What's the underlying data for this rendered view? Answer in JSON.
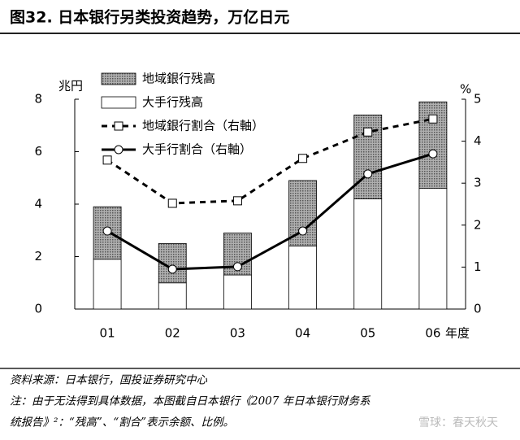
{
  "chart_data": {
    "type": "bar",
    "title": "图32. 日本银行另类投资趋势，万亿日元",
    "y_label": "兆円",
    "y2_label": "%",
    "x_label": "年度",
    "categories": [
      "01",
      "02",
      "03",
      "04",
      "05",
      "06"
    ],
    "series": [
      {
        "name": "地域銀行残高",
        "type": "bar",
        "color": "#8c8c8c",
        "values": [
          2.0,
          1.5,
          1.6,
          2.5,
          3.2,
          3.3
        ]
      },
      {
        "name": "大手行残高",
        "type": "bar",
        "color": "#ffffff",
        "values": [
          1.9,
          1.0,
          1.3,
          2.4,
          4.2,
          4.6
        ]
      },
      {
        "name": "地域銀行割合（右軸）",
        "type": "line",
        "dash": true,
        "marker": "square",
        "axis": "y2",
        "color": "#000000",
        "values": [
          3.55,
          2.52,
          2.58,
          3.59,
          4.22,
          4.53
        ]
      },
      {
        "name": "大手行割合（右軸）",
        "type": "line",
        "dash": false,
        "marker": "circle",
        "axis": "y2",
        "color": "#000000",
        "values": [
          1.86,
          0.95,
          1.01,
          1.86,
          3.22,
          3.7
        ]
      }
    ],
    "ylim": [
      0,
      8
    ],
    "yticks": [
      0,
      2,
      4,
      6,
      8
    ],
    "y2lim": [
      0,
      5
    ],
    "y2ticks": [
      0,
      1,
      2,
      3,
      4,
      5
    ],
    "source": "资料来源：日本银行，国投证券研究中心",
    "note_lines": [
      "注：由于无法得到具体数据，本图截自日本银行《2007 年日本银行财务系",
      "统报告》²：“残高”、“割合”表示余额、比例。"
    ],
    "watermark": "雪球：春天秋天"
  }
}
